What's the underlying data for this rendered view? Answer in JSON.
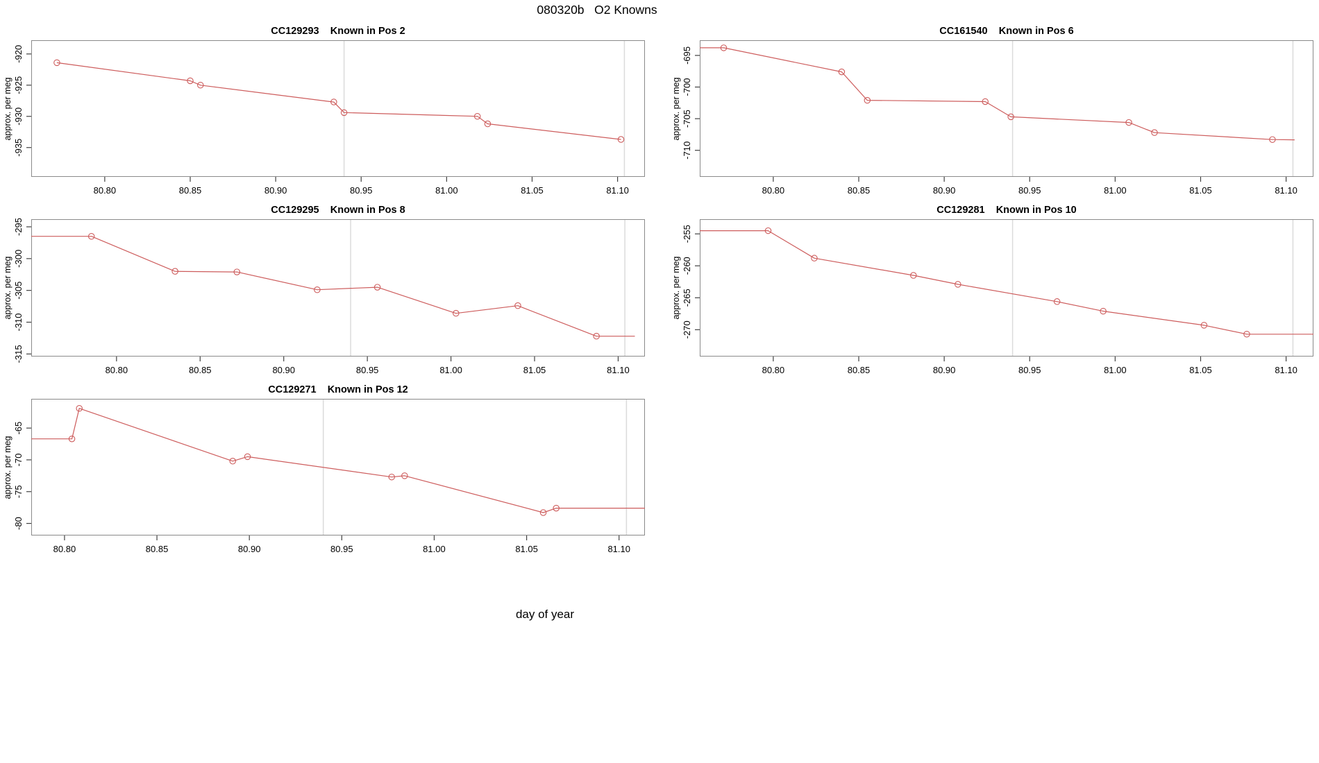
{
  "figure": {
    "title": "080320b   O2 Knowns",
    "xlabel": "day of year",
    "line_color": "#CD5C5C",
    "guide_color": "#DBDBDB",
    "box_color": "#8A8A8A",
    "tick_color": "#404040"
  },
  "chart_data": [
    {
      "type": "line",
      "id": "CC129293",
      "position_label": "Pos 2",
      "title": "CC129293    Known in Pos 2",
      "ylabel": "approx. per meg",
      "xlim": [
        80.757,
        81.116
      ],
      "ylim": [
        -939.7,
        -917.8
      ],
      "x_ticks": [
        80.8,
        80.85,
        80.9,
        80.95,
        81.0,
        81.05,
        81.1
      ],
      "x_tick_labels": [
        "80.80",
        "80.85",
        "80.90",
        "80.95",
        "81.00",
        "81.05",
        "81.10"
      ],
      "y_ticks": [
        -920,
        -925,
        -930,
        -935
      ],
      "guide_x": [
        80.94,
        81.104
      ],
      "lead": null,
      "x": [
        80.772,
        80.85,
        80.856,
        80.934,
        80.94,
        81.018,
        81.024,
        81.102
      ],
      "y": [
        -921.4,
        -924.3,
        -925.0,
        -927.7,
        -929.4,
        -930.0,
        -931.2,
        -933.7
      ],
      "trail": null
    },
    {
      "type": "line",
      "id": "CC161540",
      "position_label": "Pos 6",
      "title": "CC161540    Known in Pos 6",
      "ylabel": "approx. per meg",
      "xlim": [
        80.757,
        81.116
      ],
      "ylim": [
        -714.2,
        -692.6
      ],
      "x_ticks": [
        80.8,
        80.85,
        80.9,
        80.95,
        81.0,
        81.05,
        81.1
      ],
      "x_tick_labels": [
        "80.80",
        "80.85",
        "80.90",
        "80.95",
        "81.00",
        "81.05",
        "81.10"
      ],
      "y_ticks": [
        -695,
        -700,
        -705,
        -710
      ],
      "guide_x": [
        80.94,
        81.104
      ],
      "lead": {
        "x": 80.757,
        "y": -693.8
      },
      "x": [
        80.771,
        80.84,
        80.855,
        80.924,
        80.939,
        81.008,
        81.023,
        81.092
      ],
      "y": [
        -693.8,
        -697.6,
        -702.1,
        -702.3,
        -704.7,
        -705.6,
        -707.2,
        -708.3
      ],
      "trail": {
        "x": 81.105,
        "y": -708.35
      }
    },
    {
      "type": "line",
      "id": "CC129295",
      "position_label": "Pos 8",
      "title": "CC129295    Known in Pos 8",
      "ylabel": "approx. per meg",
      "xlim": [
        80.749,
        81.116
      ],
      "ylim": [
        -315.4,
        -293.8
      ],
      "x_ticks": [
        80.8,
        80.85,
        80.9,
        80.95,
        81.0,
        81.05,
        81.1
      ],
      "x_tick_labels": [
        "80.80",
        "80.85",
        "80.90",
        "80.95",
        "81.00",
        "81.05",
        "81.10"
      ],
      "y_ticks": [
        -295,
        -300,
        -305,
        -310,
        -315
      ],
      "guide_x": [
        80.94,
        81.104
      ],
      "lead": {
        "x": 80.749,
        "y": -296.5
      },
      "x": [
        80.785,
        80.835,
        80.872,
        80.92,
        80.956,
        81.003,
        81.04,
        81.087
      ],
      "y": [
        -296.5,
        -302.0,
        -302.1,
        -304.9,
        -304.5,
        -308.6,
        -307.4,
        -312.2
      ],
      "trail": {
        "x": 81.11,
        "y": -312.2
      }
    },
    {
      "type": "line",
      "id": "CC129281",
      "position_label": "Pos 10",
      "title": "CC129281    Known in Pos 10",
      "ylabel": "approx. per meg",
      "xlim": [
        80.757,
        81.116
      ],
      "ylim": [
        -274.2,
        -252.7
      ],
      "x_ticks": [
        80.8,
        80.85,
        80.9,
        80.95,
        81.0,
        81.05,
        81.1
      ],
      "x_tick_labels": [
        "80.80",
        "80.85",
        "80.90",
        "80.95",
        "81.00",
        "81.05",
        "81.10"
      ],
      "y_ticks": [
        -255,
        -260,
        -265,
        -270
      ],
      "guide_x": [
        80.94,
        81.104
      ],
      "lead": {
        "x": 80.757,
        "y": -254.5
      },
      "x": [
        80.797,
        80.824,
        80.882,
        80.908,
        80.966,
        80.993,
        81.052,
        81.077
      ],
      "y": [
        -254.5,
        -258.8,
        -261.5,
        -262.9,
        -265.6,
        -267.1,
        -269.3,
        -270.7
      ],
      "trail": {
        "x": 81.116,
        "y": -270.7
      }
    },
    {
      "type": "line",
      "id": "CC129271",
      "position_label": "Pos 12",
      "title": "CC129271    Known in Pos 12",
      "ylabel": "approx. per meg",
      "xlim": [
        80.782,
        81.114
      ],
      "ylim": [
        -81.9,
        -60.4
      ],
      "x_ticks": [
        80.8,
        80.85,
        80.9,
        80.95,
        81.0,
        81.05,
        81.1
      ],
      "x_tick_labels": [
        "80.80",
        "80.85",
        "80.90",
        "80.95",
        "81.00",
        "81.05",
        "81.10"
      ],
      "y_ticks": [
        -65,
        -70,
        -75,
        -80
      ],
      "guide_x": [
        80.94,
        81.104
      ],
      "lead": {
        "x": 80.782,
        "y": -66.7
      },
      "x": [
        80.804,
        80.808,
        80.891,
        80.899,
        80.977,
        80.984,
        81.059,
        81.066
      ],
      "y": [
        -66.7,
        -61.9,
        -70.2,
        -69.5,
        -72.7,
        -72.5,
        -78.3,
        -77.6
      ],
      "trail": {
        "x": 81.114,
        "y": -77.6
      }
    }
  ]
}
